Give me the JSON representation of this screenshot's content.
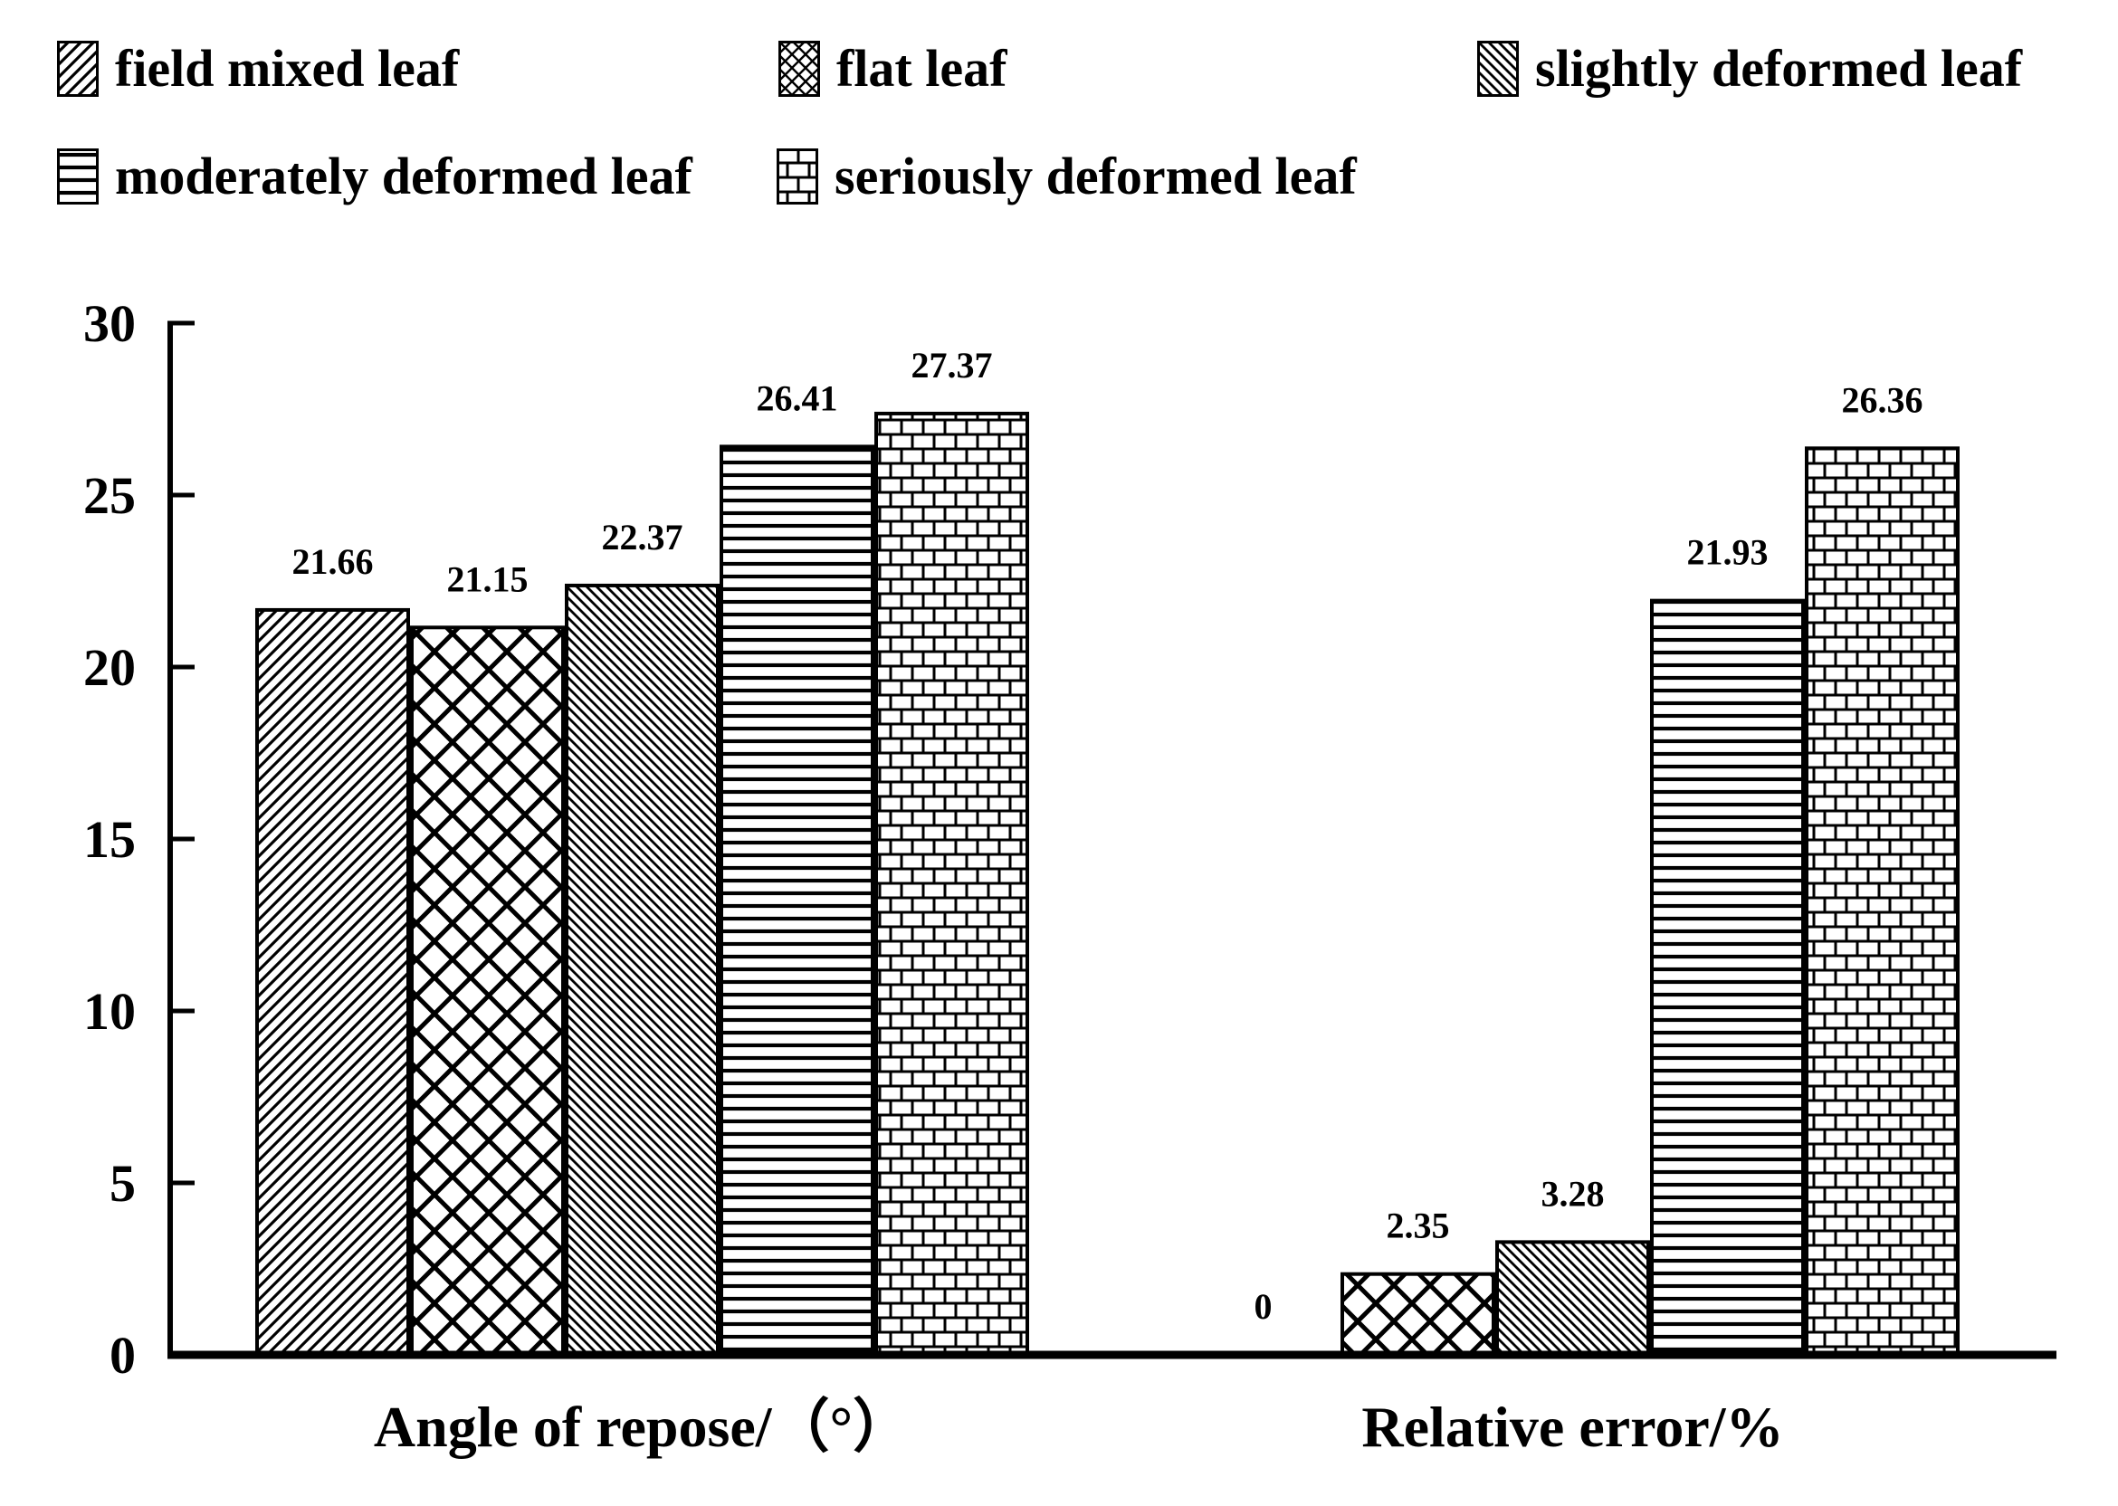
{
  "figure": {
    "background": "#ffffff",
    "ink": "#000000"
  },
  "legend": {
    "items": [
      {
        "label": "field mixed leaf",
        "pattern": "diagonal-forward"
      },
      {
        "label": "flat leaf",
        "pattern": "crosshatch"
      },
      {
        "label": "slightly deformed leaf",
        "pattern": "diagonal-backward"
      },
      {
        "label": "moderately deformed leaf",
        "pattern": "horizontal-lines"
      },
      {
        "label": "seriously deformed leaf",
        "pattern": "brick"
      }
    ]
  },
  "chart_data": {
    "type": "bar",
    "title": "",
    "xlabel": "",
    "ylabel": "",
    "categories": [
      "Angle of repose/（°）",
      "Relative error/%"
    ],
    "series": [
      {
        "name": "field mixed leaf",
        "pattern": "diagonal-forward",
        "values": [
          21.66,
          0
        ]
      },
      {
        "name": "flat leaf",
        "pattern": "crosshatch",
        "values": [
          21.15,
          2.35
        ]
      },
      {
        "name": "slightly deformed leaf",
        "pattern": "diagonal-backward",
        "values": [
          22.37,
          3.28
        ]
      },
      {
        "name": "moderately deformed leaf",
        "pattern": "horizontal-lines",
        "values": [
          26.41,
          21.93
        ]
      },
      {
        "name": "seriously deformed leaf",
        "pattern": "brick",
        "values": [
          27.37,
          26.36
        ]
      }
    ],
    "bar_labels": [
      [
        "21.66",
        "21.15",
        "22.37",
        "26.41",
        "27.37"
      ],
      [
        "0",
        "2.35",
        "3.28",
        "21.93",
        "26.36"
      ]
    ],
    "ylim": [
      0,
      30
    ],
    "yticks": [
      0,
      5,
      10,
      15,
      20,
      25,
      30
    ],
    "grid": false,
    "legend_position": "top"
  }
}
